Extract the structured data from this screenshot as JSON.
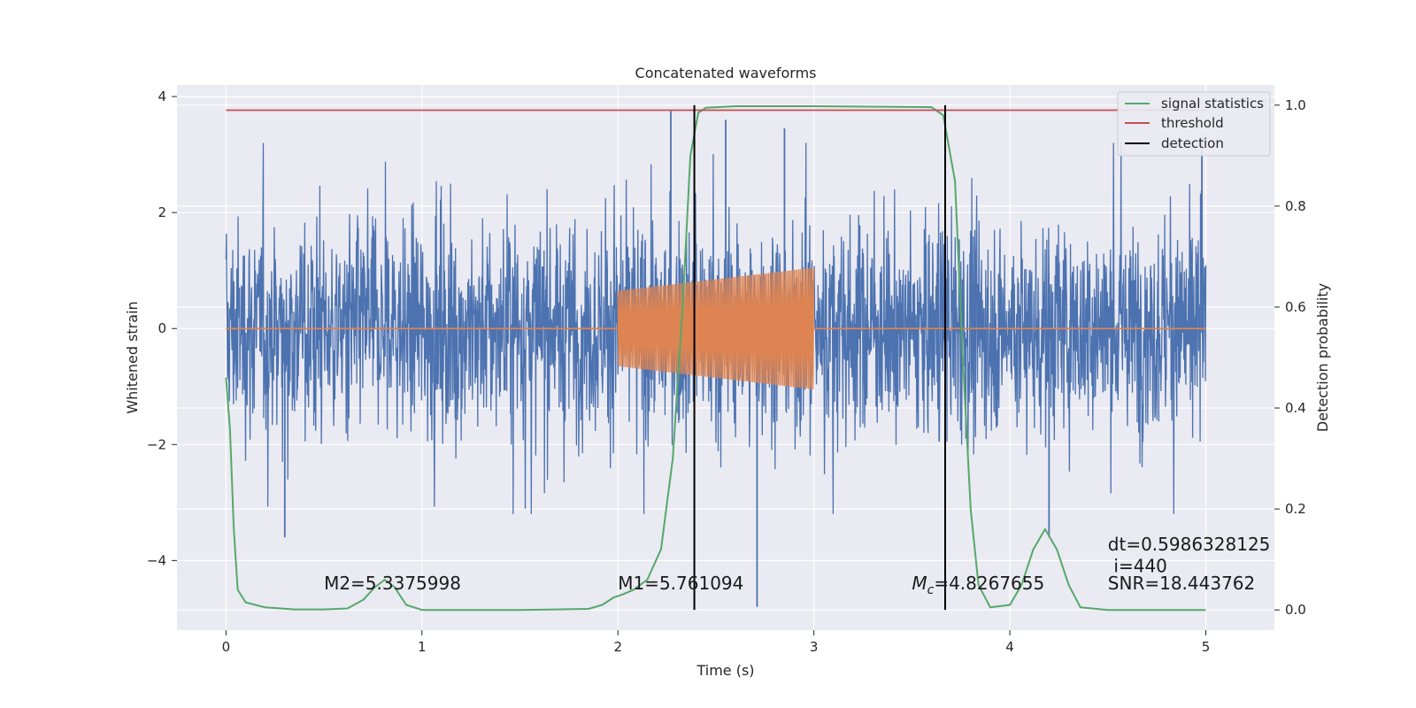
{
  "chart_data": {
    "type": "line",
    "title": "Concatenated waveforms",
    "xlabel": "Time (s)",
    "ylabel_left": "Whitened strain",
    "ylabel_right": "Detection probability",
    "xlim": [
      -0.25,
      5.35
    ],
    "ylim_left": [
      -5.2,
      4.2
    ],
    "ylim_right": [
      -0.04,
      1.04
    ],
    "x_ticks": [
      0,
      1,
      2,
      3,
      4,
      5
    ],
    "x_tick_labels": [
      "0",
      "1",
      "2",
      "3",
      "4",
      "5"
    ],
    "y_left_ticks": [
      4,
      2,
      0,
      -2,
      -4
    ],
    "y_left_tick_labels": [
      "4",
      "2",
      "0",
      "−2",
      "−4"
    ],
    "y_right_ticks": [
      1.0,
      0.8,
      0.6,
      0.4,
      0.2,
      0.0
    ],
    "y_right_tick_labels": [
      "1.0",
      "0.8",
      "0.6",
      "0.4",
      "0.2",
      "0.0"
    ],
    "grid": true,
    "legend_position": "top-right",
    "colors": {
      "background": "#eaeaf2",
      "grid": "#ffffff",
      "strain": "#4c72b0",
      "template": "#dd8452",
      "signal_statistics": "#55a868",
      "threshold": "#c44e52",
      "detection": "#000000"
    },
    "series": [
      {
        "name": "signal statistics",
        "axis": "right",
        "color": "#55a868",
        "points": [
          [
            0,
            0.46
          ],
          [
            0.02,
            0.36
          ],
          [
            0.04,
            0.16
          ],
          [
            0.06,
            0.04
          ],
          [
            0.1,
            0.015
          ],
          [
            0.2,
            0.005
          ],
          [
            0.35,
            0.001
          ],
          [
            0.5,
            0.001
          ],
          [
            0.62,
            0.003
          ],
          [
            0.7,
            0.02
          ],
          [
            0.76,
            0.045
          ],
          [
            0.81,
            0.06
          ],
          [
            0.86,
            0.045
          ],
          [
            0.92,
            0.01
          ],
          [
            1.0,
            0.0
          ],
          [
            1.5,
            0.0
          ],
          [
            1.85,
            0.002
          ],
          [
            1.92,
            0.01
          ],
          [
            1.98,
            0.025
          ],
          [
            2.02,
            0.03
          ],
          [
            2.08,
            0.04
          ],
          [
            2.15,
            0.06
          ],
          [
            2.22,
            0.12
          ],
          [
            2.28,
            0.3
          ],
          [
            2.33,
            0.6
          ],
          [
            2.37,
            0.9
          ],
          [
            2.41,
            0.985
          ],
          [
            2.45,
            0.995
          ],
          [
            2.6,
            0.998
          ],
          [
            3.0,
            0.998
          ],
          [
            3.6,
            0.996
          ],
          [
            3.66,
            0.98
          ],
          [
            3.72,
            0.85
          ],
          [
            3.76,
            0.5
          ],
          [
            3.8,
            0.2
          ],
          [
            3.84,
            0.05
          ],
          [
            3.9,
            0.005
          ],
          [
            4.0,
            0.01
          ],
          [
            4.06,
            0.05
          ],
          [
            4.12,
            0.12
          ],
          [
            4.18,
            0.16
          ],
          [
            4.24,
            0.12
          ],
          [
            4.3,
            0.05
          ],
          [
            4.36,
            0.005
          ],
          [
            4.5,
            0.0
          ],
          [
            5.0,
            0.0
          ]
        ]
      },
      {
        "name": "threshold",
        "axis": "right",
        "color": "#c44e52",
        "points": [
          [
            0,
            0.99
          ],
          [
            5.0,
            0.99
          ]
        ]
      },
      {
        "name": "detection",
        "axis": "right",
        "color": "#000000",
        "x": [
          2.39,
          3.67
        ],
        "yrange": [
          0.0,
          1.0
        ]
      }
    ],
    "strain_noise": {
      "axis": "left",
      "color": "#4c72b0",
      "xrange": [
        0,
        5
      ],
      "typical_peak": 2.2,
      "extremes": [
        [
          0.3,
          -3.6
        ],
        [
          2.27,
          3.75
        ],
        [
          2.55,
          3.6
        ],
        [
          2.71,
          -4.8
        ],
        [
          2.85,
          3.45
        ],
        [
          4.2,
          -3.6
        ],
        [
          4.98,
          3.3
        ]
      ]
    },
    "template_wave": {
      "axis": "left",
      "color": "#dd8452",
      "xrange": [
        2.0,
        3.0
      ],
      "amplitude_start": 0.65,
      "amplitude_end": 1.05
    },
    "annotations": [
      {
        "text": "M2=5.3375998",
        "x": 0.5,
        "y": -4.5,
        "axis": "left"
      },
      {
        "text": "M1=5.761094",
        "x": 2.0,
        "y": -4.5,
        "axis": "left"
      },
      {
        "text": "M",
        "sub": "c",
        "rest": "=4.8267655",
        "x": 3.5,
        "y": -4.5,
        "axis": "left"
      },
      {
        "text": "dt=0.5986328125",
        "x": 4.5,
        "y": -3.83,
        "axis": "left"
      },
      {
        "text": "i=440",
        "x": 4.53,
        "y": -4.2,
        "axis": "left"
      },
      {
        "text": "SNR=18.443762",
        "x": 4.5,
        "y": -4.5,
        "axis": "left"
      }
    ]
  }
}
